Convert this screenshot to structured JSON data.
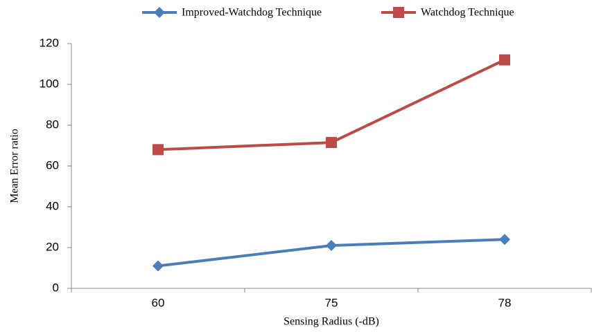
{
  "chart_data": {
    "type": "line",
    "x_label": "Sensing Radius (-dB)",
    "y_label": "Mean Error ratio",
    "categories": [
      "60",
      "75",
      "78"
    ],
    "series": [
      {
        "name": "Improved-Watchdog Technique",
        "color": "#4a7ebb",
        "marker": "diamond",
        "values": [
          11,
          21,
          24
        ]
      },
      {
        "name": "Watchdog Technique",
        "color": "#be4b48",
        "marker": "square",
        "values": [
          68,
          71.5,
          112
        ]
      }
    ],
    "ylim": [
      0,
      120
    ],
    "yticks": [
      0,
      20,
      40,
      60,
      80,
      100,
      120
    ],
    "legend": "top"
  }
}
